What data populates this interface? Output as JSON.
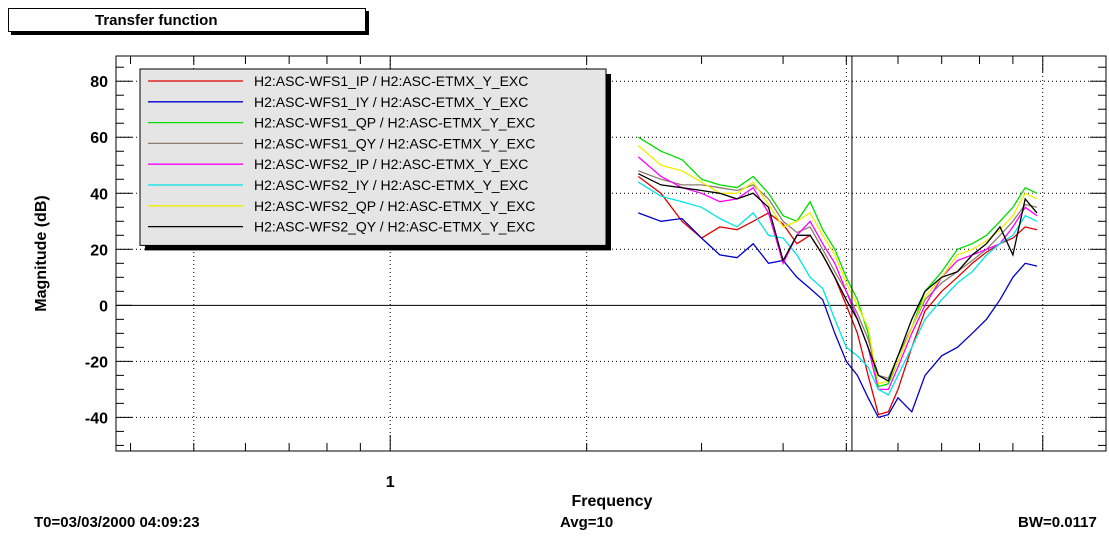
{
  "header": {
    "title": "Transfer function"
  },
  "footer": {
    "t0": "T0=03/03/2000 04:09:23",
    "avg": "Avg=10",
    "bw": "BW=0.0117"
  },
  "chart_data": {
    "type": "line",
    "title": "Transfer function",
    "xlabel": "Frequency",
    "ylabel": "Magnitude (dB)",
    "x_scale": "log",
    "xlim": [
      0.38,
      12.5
    ],
    "ylim": [
      -52,
      89
    ],
    "x_ticks": [
      1
    ],
    "x_tick_labels": [
      "1"
    ],
    "y_ticks": [
      -40,
      -20,
      0,
      20,
      40,
      60,
      80
    ],
    "y_tick_labels": [
      "-40",
      "-20",
      "0",
      "20",
      "40",
      "60",
      "80"
    ],
    "cursor_x": 5.1,
    "grid": true,
    "legend_position": "top-left",
    "x": [
      2.4,
      2.6,
      2.8,
      3.0,
      3.2,
      3.4,
      3.6,
      3.8,
      4.0,
      4.2,
      4.4,
      4.6,
      4.8,
      5.0,
      5.2,
      5.4,
      5.6,
      5.8,
      6.0,
      6.3,
      6.6,
      7.0,
      7.4,
      7.8,
      8.2,
      8.6,
      9.0,
      9.4,
      9.8
    ],
    "series": [
      {
        "name": "H2:ASC-WFS1_IP / H2:ASC-ETMX_Y_EXC",
        "color": "#e00000",
        "values": [
          46,
          40,
          30,
          24,
          28,
          27,
          30,
          33,
          29,
          22,
          25,
          18,
          10,
          0,
          -10,
          -25,
          -39,
          -38,
          -30,
          -15,
          -2,
          5,
          10,
          15,
          19,
          22,
          24,
          28,
          27
        ]
      },
      {
        "name": "H2:ASC-WFS1_IY / H2:ASC-ETMX_Y_EXC",
        "color": "#0000cc",
        "values": [
          33,
          30,
          31,
          24,
          18,
          17,
          22,
          15,
          16,
          10,
          6,
          2,
          -10,
          -20,
          -25,
          -33,
          -40,
          -39,
          -33,
          -38,
          -25,
          -18,
          -15,
          -10,
          -5,
          2,
          10,
          15,
          14
        ]
      },
      {
        "name": "H2:ASC-WFS1_QP / H2:ASC-ETMX_Y_EXC",
        "color": "#00dd00",
        "values": [
          60,
          55,
          52,
          45,
          43,
          42,
          46,
          40,
          32,
          30,
          37,
          27,
          20,
          10,
          2,
          -10,
          -29,
          -28,
          -20,
          -8,
          5,
          12,
          20,
          22,
          25,
          30,
          35,
          42,
          40
        ]
      },
      {
        "name": "H2:ASC-WFS1_QY / H2:ASC-ETMX_Y_EXC",
        "color": "#8c7b70",
        "values": [
          48,
          45,
          43,
          43,
          42,
          41,
          43,
          38,
          30,
          26,
          28,
          20,
          12,
          5,
          -3,
          -12,
          -25,
          -26,
          -18,
          -8,
          2,
          8,
          12,
          16,
          20,
          25,
          30,
          36,
          35
        ]
      },
      {
        "name": "H2:ASC-WFS2_IP / H2:ASC-ETMX_Y_EXC",
        "color": "#ff00ff",
        "values": [
          53,
          46,
          42,
          40,
          37,
          38,
          42,
          33,
          15,
          25,
          30,
          22,
          15,
          5,
          -5,
          -15,
          -30,
          -30,
          -22,
          -10,
          0,
          10,
          16,
          18,
          20,
          22,
          28,
          35,
          32
        ]
      },
      {
        "name": "H2:ASC-WFS2_IY / H2:ASC-ETMX_Y_EXC",
        "color": "#00e5e5",
        "values": [
          44,
          39,
          37,
          35,
          31,
          28,
          33,
          25,
          24,
          18,
          10,
          6,
          -5,
          -15,
          -18,
          -22,
          -30,
          -32,
          -25,
          -15,
          -5,
          2,
          8,
          12,
          18,
          22,
          25,
          32,
          30
        ]
      },
      {
        "name": "H2:ASC-WFS2_QP / H2:ASC-ETMX_Y_EXC",
        "color": "#eeee00",
        "values": [
          57,
          50,
          48,
          44,
          40,
          40,
          44,
          36,
          28,
          30,
          33,
          25,
          18,
          8,
          0,
          -8,
          -28,
          -27,
          -20,
          -8,
          3,
          10,
          18,
          20,
          23,
          27,
          32,
          40,
          38
        ]
      },
      {
        "name": "H2:ASC-WFS2_QY / H2:ASC-ETMX_Y_EXC",
        "color": "#000000",
        "values": [
          47,
          43,
          42,
          41,
          40,
          38,
          40,
          35,
          16,
          25,
          25,
          18,
          10,
          2,
          -5,
          -15,
          -25,
          -27,
          -18,
          -5,
          5,
          10,
          12,
          18,
          22,
          28,
          18,
          38,
          33
        ]
      }
    ]
  }
}
